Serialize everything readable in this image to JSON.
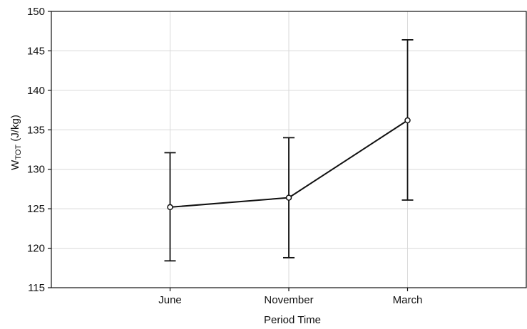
{
  "chart_data": {
    "type": "line",
    "title": "",
    "xlabel": "Period Time",
    "ylabel": {
      "main": "W",
      "subscript": "TOT",
      "unit": " (J/kg)"
    },
    "categories": [
      "June",
      "November",
      "March"
    ],
    "ylim": [
      115,
      150
    ],
    "yticks": [
      115,
      120,
      125,
      130,
      135,
      140,
      145,
      150
    ],
    "grid": true,
    "legend": "none",
    "series": [
      {
        "values": [
          125.2,
          126.4,
          136.2
        ],
        "error_low": [
          118.4,
          118.8,
          126.1
        ],
        "error_high": [
          132.1,
          134.0,
          146.4
        ]
      }
    ]
  }
}
